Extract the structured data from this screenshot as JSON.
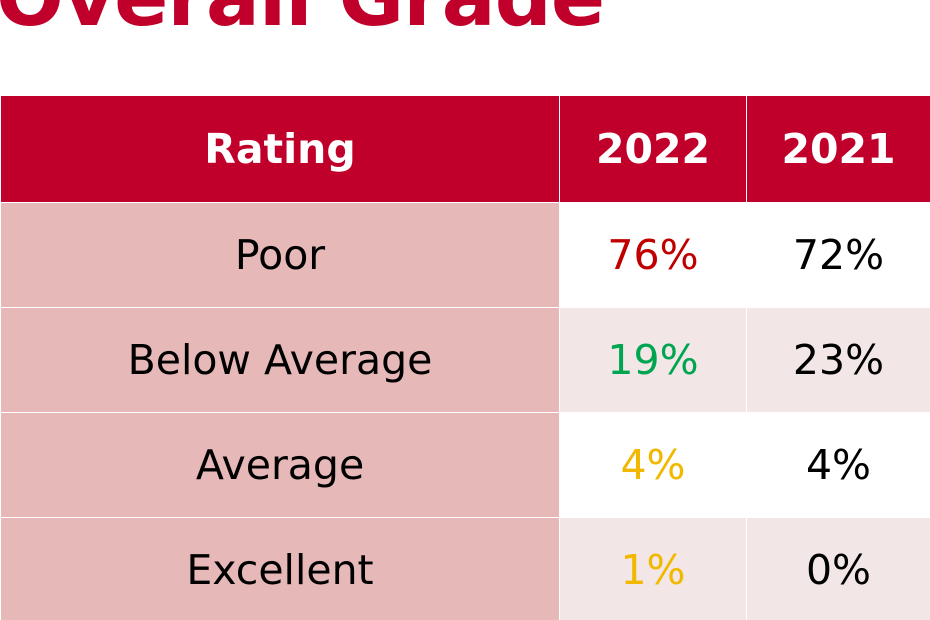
{
  "title": "Overall Grade",
  "colors": {
    "brand": "#c0002a",
    "header_text": "#ffffff",
    "rating_cell_bg": "#e6b8b8",
    "alt_row_bg": "#f2e6e6",
    "white_row_bg": "#ffffff",
    "red": "#c00000",
    "green": "#00a550",
    "amber": "#f2b800",
    "black": "#000000"
  },
  "table": {
    "headers": [
      "Rating",
      "2022",
      "2021"
    ],
    "rows": [
      {
        "rating": "Poor",
        "y2022": "76%",
        "y2021": "72%",
        "y2022_color": "#c00000"
      },
      {
        "rating": "Below Average",
        "y2022": "19%",
        "y2021": "23%",
        "y2022_color": "#00a550"
      },
      {
        "rating": "Average",
        "y2022": "4%",
        "y2021": "4%",
        "y2022_color": "#f2b800"
      },
      {
        "rating": "Excellent",
        "y2022": "1%",
        "y2021": "0%",
        "y2022_color": "#f2b800"
      }
    ]
  }
}
